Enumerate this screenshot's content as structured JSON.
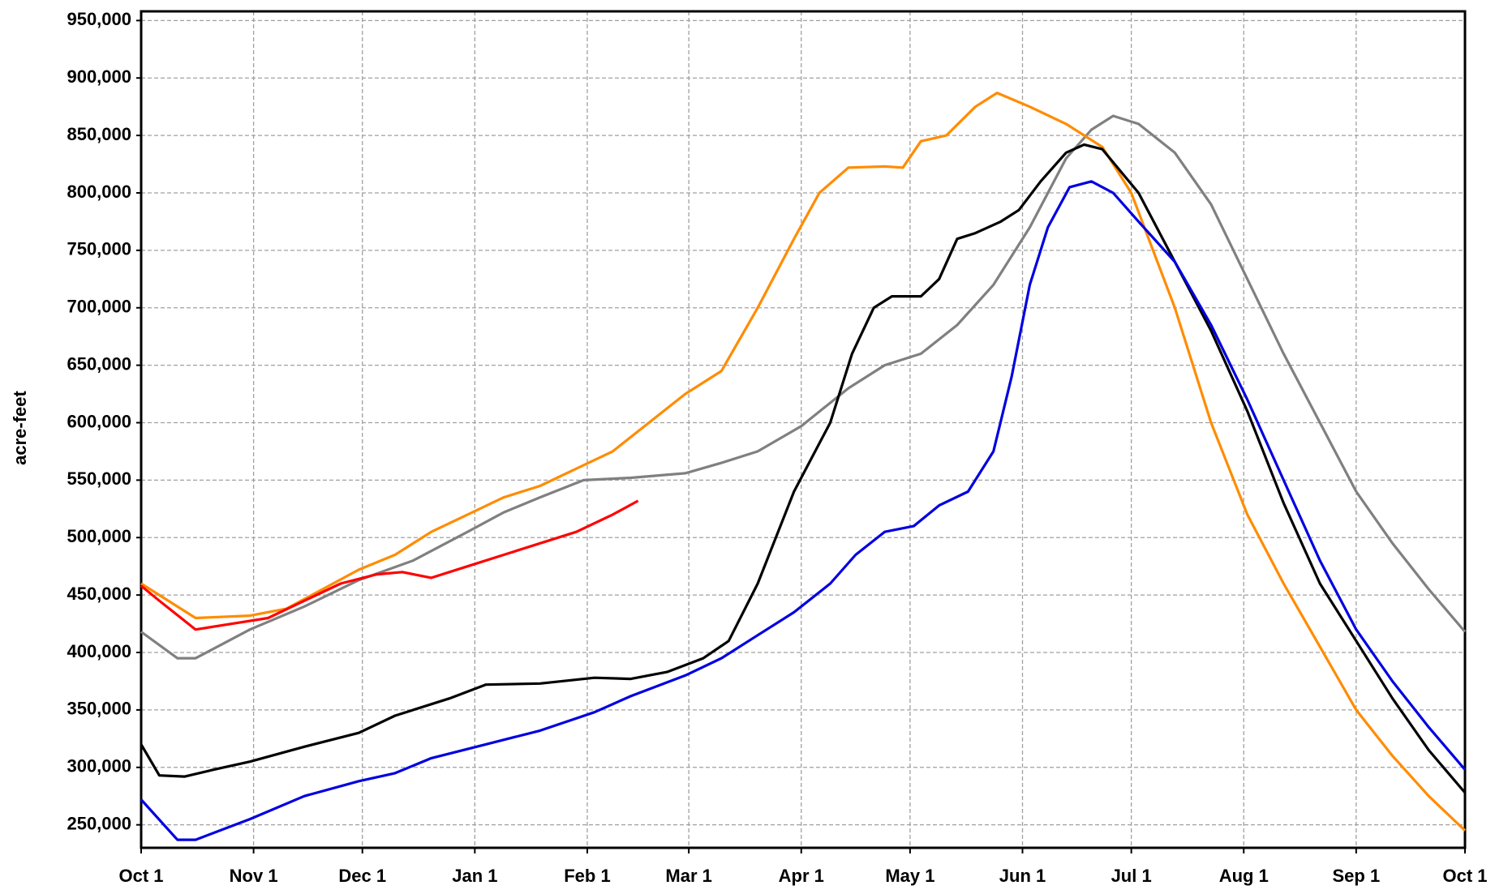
{
  "chart_data": {
    "type": "line",
    "y_label": "acre-feet",
    "xlim": [
      0,
      365
    ],
    "ylim": [
      230000,
      958000
    ],
    "grid": true,
    "xticks": [
      {
        "value": 0,
        "label": "Oct 1"
      },
      {
        "value": 31,
        "label": "Nov 1"
      },
      {
        "value": 61,
        "label": "Dec 1"
      },
      {
        "value": 92,
        "label": "Jan 1"
      },
      {
        "value": 123,
        "label": "Feb 1"
      },
      {
        "value": 151,
        "label": "Mar 1"
      },
      {
        "value": 182,
        "label": "Apr 1"
      },
      {
        "value": 212,
        "label": "May 1"
      },
      {
        "value": 243,
        "label": "Jun 1"
      },
      {
        "value": 273,
        "label": "Jul 1"
      },
      {
        "value": 304,
        "label": "Aug 1"
      },
      {
        "value": 335,
        "label": "Sep 1"
      },
      {
        "value": 365,
        "label": "Oct 1"
      }
    ],
    "yticks": [
      {
        "value": 250000,
        "label": "250,000"
      },
      {
        "value": 300000,
        "label": "300,000"
      },
      {
        "value": 350000,
        "label": "350,000"
      },
      {
        "value": 400000,
        "label": "400,000"
      },
      {
        "value": 450000,
        "label": "450,000"
      },
      {
        "value": 500000,
        "label": "500,000"
      },
      {
        "value": 550000,
        "label": "550,000"
      },
      {
        "value": 600000,
        "label": "600,000"
      },
      {
        "value": 650000,
        "label": "650,000"
      },
      {
        "value": 700000,
        "label": "700,000"
      },
      {
        "value": 750000,
        "label": "750,000"
      },
      {
        "value": 800000,
        "label": "800,000"
      },
      {
        "value": 850000,
        "label": "850,000"
      },
      {
        "value": 900000,
        "label": "900,000"
      },
      {
        "value": 950000,
        "label": "950,000"
      }
    ],
    "series": [
      {
        "color": "#808080",
        "x": [
          0,
          10,
          15,
          30,
          45,
          60,
          75,
          90,
          100,
          110,
          122,
          135,
          150,
          160,
          170,
          182,
          195,
          205,
          215,
          225,
          235,
          245,
          255,
          262,
          268,
          275,
          285,
          295,
          305,
          315,
          325,
          335,
          345,
          355,
          365
        ],
        "values": [
          418000,
          395000,
          395000,
          420000,
          440000,
          463000,
          480000,
          505000,
          522000,
          535000,
          550000,
          552000,
          556000,
          565000,
          575000,
          597000,
          630000,
          650000,
          660000,
          685000,
          720000,
          770000,
          830000,
          855000,
          867000,
          860000,
          835000,
          790000,
          725000,
          660000,
          600000,
          540000,
          495000,
          455000,
          418000
        ]
      },
      {
        "color": "#ff8c00",
        "x": [
          0,
          15,
          30,
          40,
          50,
          60,
          70,
          80,
          90,
          100,
          110,
          120,
          130,
          140,
          150,
          160,
          170,
          180,
          187,
          195,
          205,
          210,
          215,
          222,
          230,
          236,
          245,
          255,
          265,
          273,
          285,
          295,
          305,
          315,
          325,
          335,
          345,
          355,
          365
        ],
        "values": [
          460000,
          430000,
          432000,
          438000,
          455000,
          472000,
          485000,
          505000,
          520000,
          535000,
          545000,
          560000,
          575000,
          600000,
          625000,
          645000,
          700000,
          760000,
          800000,
          822000,
          823000,
          822000,
          845000,
          850000,
          875000,
          887000,
          875000,
          860000,
          840000,
          800000,
          700000,
          600000,
          520000,
          460000,
          405000,
          350000,
          310000,
          275000,
          245000
        ]
      },
      {
        "color": "#000000",
        "x": [
          0,
          5,
          12,
          20,
          30,
          45,
          60,
          70,
          85,
          95,
          110,
          125,
          135,
          145,
          155,
          162,
          170,
          180,
          190,
          196,
          202,
          207,
          215,
          220,
          225,
          230,
          237,
          242,
          248,
          255,
          260,
          265,
          275,
          285,
          295,
          305,
          315,
          325,
          335,
          345,
          355,
          365
        ],
        "values": [
          320000,
          293000,
          292000,
          298000,
          305000,
          318000,
          330000,
          345000,
          360000,
          372000,
          373000,
          378000,
          377000,
          383000,
          395000,
          410000,
          460000,
          540000,
          600000,
          660000,
          700000,
          710000,
          710000,
          725000,
          760000,
          765000,
          775000,
          785000,
          810000,
          835000,
          842000,
          838000,
          800000,
          740000,
          680000,
          610000,
          530000,
          460000,
          410000,
          360000,
          315000,
          278000
        ]
      },
      {
        "color": "#0000e0",
        "x": [
          0,
          10,
          15,
          30,
          45,
          60,
          70,
          80,
          95,
          110,
          125,
          135,
          150,
          160,
          170,
          180,
          190,
          197,
          205,
          213,
          220,
          228,
          235,
          240,
          245,
          250,
          256,
          262,
          268,
          275,
          285,
          295,
          305,
          315,
          325,
          335,
          345,
          355,
          365
        ],
        "values": [
          272000,
          237000,
          237000,
          255000,
          275000,
          288000,
          295000,
          308000,
          320000,
          332000,
          348000,
          362000,
          380000,
          395000,
          415000,
          435000,
          460000,
          485000,
          505000,
          510000,
          528000,
          540000,
          575000,
          640000,
          720000,
          770000,
          805000,
          810000,
          800000,
          775000,
          740000,
          685000,
          620000,
          550000,
          480000,
          420000,
          375000,
          335000,
          298000
        ]
      },
      {
        "color": "#ff0000",
        "x": [
          0,
          5,
          15,
          25,
          35,
          45,
          55,
          65,
          72,
          80,
          90,
          100,
          110,
          120,
          130,
          137
        ],
        "values": [
          458000,
          445000,
          420000,
          425000,
          430000,
          445000,
          460000,
          468000,
          470000,
          465000,
          475000,
          485000,
          495000,
          505000,
          520000,
          532000
        ]
      }
    ]
  }
}
